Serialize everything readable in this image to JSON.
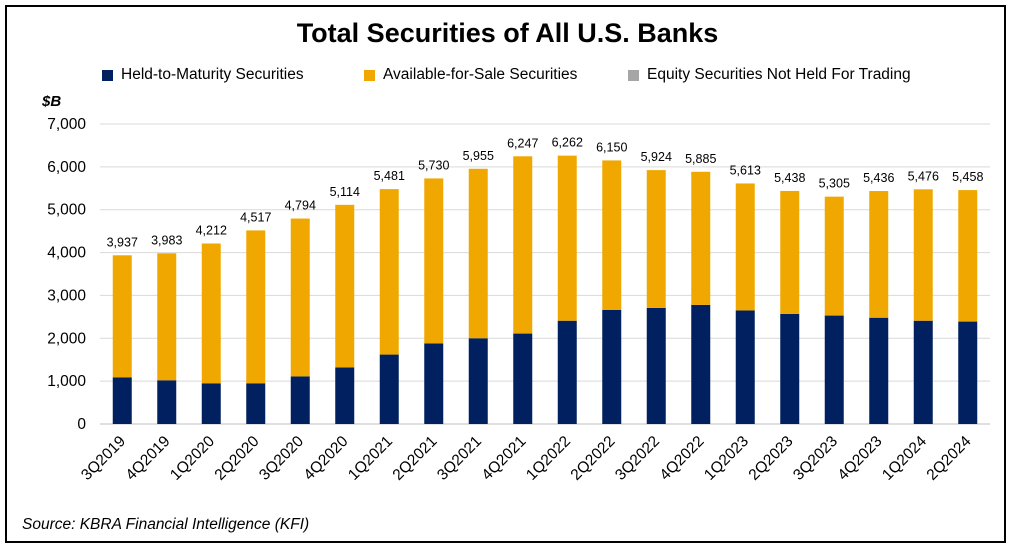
{
  "chart_data": {
    "type": "bar",
    "stacked": true,
    "title": "Total Securities of All U.S. Banks",
    "ylabel": "$B",
    "ylim": [
      0,
      7000
    ],
    "yticks": [
      "0",
      "1,000",
      "2,000",
      "3,000",
      "4,000",
      "5,000",
      "6,000",
      "7,000"
    ],
    "grid": true,
    "legend_position": "top",
    "categories": [
      "3Q2019",
      "4Q2019",
      "1Q2020",
      "2Q2020",
      "3Q2020",
      "4Q2020",
      "1Q2021",
      "2Q2021",
      "3Q2021",
      "4Q2021",
      "1Q2022",
      "2Q2022",
      "3Q2022",
      "4Q2022",
      "1Q2023",
      "2Q2023",
      "3Q2023",
      "4Q2023",
      "1Q2024",
      "2Q2024"
    ],
    "series": [
      {
        "name": "Held-to-Maturity Securities",
        "color": "#002060",
        "values": [
          1085,
          1020,
          950,
          950,
          1110,
          1320,
          1620,
          1880,
          2000,
          2110,
          2410,
          2660,
          2710,
          2780,
          2650,
          2570,
          2530,
          2480,
          2410,
          2390
        ]
      },
      {
        "name": "Available-for-Sale Securities",
        "color": "#F0A800",
        "values": [
          2852,
          2963,
          3262,
          3567,
          3684,
          3794,
          3861,
          3850,
          3955,
          4137,
          3852,
          3490,
          3214,
          3105,
          2963,
          2868,
          2775,
          2956,
          3066,
          3068
        ]
      },
      {
        "name": "Equity Securities Not Held For Trading",
        "color": "#A6A6A6",
        "values": [
          0,
          0,
          0,
          0,
          0,
          0,
          0,
          0,
          0,
          0,
          0,
          0,
          0,
          0,
          0,
          0,
          0,
          0,
          0,
          0
        ]
      }
    ],
    "totals": [
      3937,
      3983,
      4212,
      4517,
      4794,
      5114,
      5481,
      5730,
      5955,
      6247,
      6262,
      6150,
      5924,
      5885,
      5613,
      5438,
      5305,
      5436,
      5476,
      5458
    ],
    "total_labels": [
      "3,937",
      "3,983",
      "4,212",
      "4,517",
      "4,794",
      "5,114",
      "5,481",
      "5,730",
      "5,955",
      "6,247",
      "6,262",
      "6,150",
      "5,924",
      "5,885",
      "5,613",
      "5,438",
      "5,305",
      "5,436",
      "5,476",
      "5,458"
    ]
  },
  "source_text": "Source: KBRA Financial Intelligence (KFI)"
}
